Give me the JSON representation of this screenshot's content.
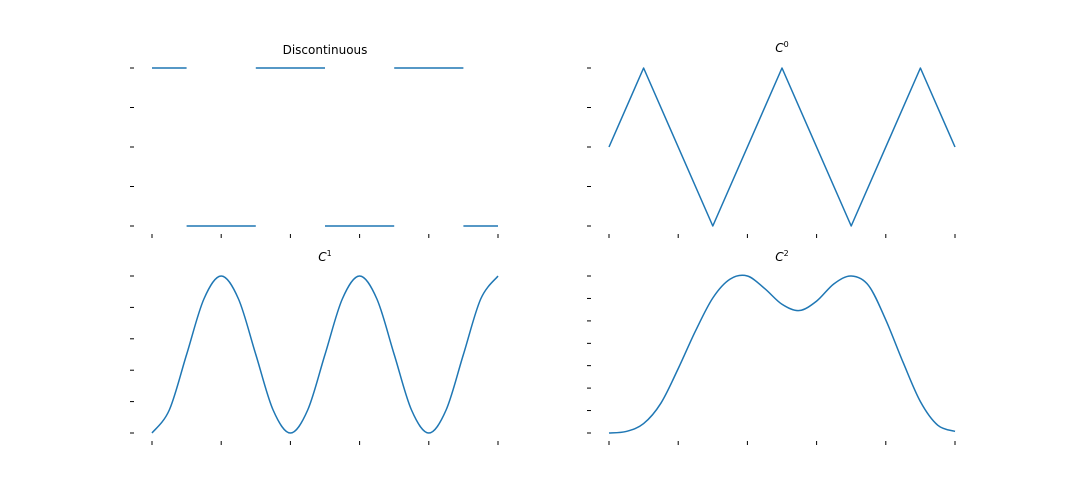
{
  "figure": {
    "background": "#ffffff",
    "line_color": "#1f77b4",
    "tick_color": "#000000"
  },
  "chart_data": [
    {
      "type": "line",
      "title": "Discontinuous",
      "title_symbol": "",
      "title_sup": "",
      "segments": [
        {
          "x": [
            0,
            0.5
          ],
          "y": [
            1,
            1
          ]
        },
        {
          "x": [
            0.5,
            1.5
          ],
          "y": [
            -1,
            -1
          ]
        },
        {
          "x": [
            1.5,
            2.5
          ],
          "y": [
            1,
            1
          ]
        },
        {
          "x": [
            2.5,
            3.5
          ],
          "y": [
            -1,
            -1
          ]
        },
        {
          "x": [
            3.5,
            4.5
          ],
          "y": [
            1,
            1
          ]
        },
        {
          "x": [
            4.5,
            5
          ],
          "y": [
            -1,
            -1
          ]
        }
      ],
      "xlim": [
        0,
        5
      ],
      "ylim": [
        -1,
        1
      ],
      "xticks": [
        0,
        1,
        2,
        3,
        4,
        5
      ],
      "yticks": [
        -1,
        -0.5,
        0,
        0.5,
        1
      ],
      "grid": false
    },
    {
      "type": "line",
      "title": "",
      "title_symbol": "C",
      "title_sup": "0",
      "x": [
        0,
        0.5,
        1.5,
        2.5,
        3.5,
        4.5,
        5
      ],
      "y": [
        0,
        1,
        -1,
        1,
        -1,
        1,
        0
      ],
      "xlim": [
        0,
        5
      ],
      "ylim": [
        -1,
        1
      ],
      "xticks": [
        0,
        1,
        2,
        3,
        4,
        5
      ],
      "yticks": [
        -1,
        -0.5,
        0,
        0.5,
        1
      ],
      "grid": false
    },
    {
      "type": "line",
      "title": "",
      "title_symbol": "C",
      "title_sup": "1",
      "x": [
        0,
        0.25,
        0.5,
        0.75,
        1,
        1.25,
        1.5,
        1.75,
        2,
        2.25,
        2.5,
        2.75,
        3,
        3.25,
        3.5,
        3.75,
        4,
        4.25,
        4.5,
        4.75,
        5
      ],
      "y": [
        -1,
        -0.7071,
        0,
        0.7071,
        1,
        0.7071,
        0,
        -0.7071,
        -1,
        -0.7071,
        0,
        0.7071,
        1,
        0.7071,
        0,
        -0.7071,
        -1,
        -0.7071,
        0,
        0.7071,
        1
      ],
      "xlim": [
        0,
        5
      ],
      "ylim": [
        -1,
        1
      ],
      "xticks": [
        0,
        1,
        2,
        3,
        4,
        5
      ],
      "yticks": [
        -1,
        -0.6,
        -0.2,
        0.2,
        0.6,
        1
      ],
      "grid": false
    },
    {
      "type": "line",
      "title": "",
      "title_symbol": "C",
      "title_sup": "2",
      "x": [
        0,
        0.25,
        0.5,
        0.75,
        1,
        1.25,
        1.5,
        1.75,
        2,
        2.25,
        2.5,
        2.75,
        3,
        3.25,
        3.5,
        3.75,
        4,
        4.25,
        4.5,
        4.75,
        5
      ],
      "y": [
        0,
        0.01,
        0.06,
        0.19,
        0.41,
        0.65,
        0.86,
        0.98,
        1.0,
        0.92,
        0.82,
        0.78,
        0.84,
        0.95,
        1.0,
        0.94,
        0.72,
        0.45,
        0.2,
        0.05,
        0.01
      ],
      "xlim": [
        0,
        5
      ],
      "ylim": [
        0,
        1
      ],
      "xticks": [
        0,
        1,
        2,
        3,
        4,
        5
      ],
      "yticks": [
        0,
        0.143,
        0.286,
        0.429,
        0.571,
        0.714,
        0.857,
        1
      ],
      "grid": false
    }
  ]
}
